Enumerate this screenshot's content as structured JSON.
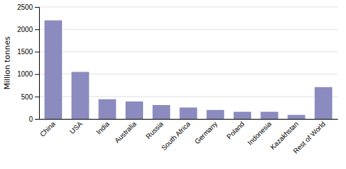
{
  "chart_data": {
    "type": "bar",
    "ylabel": "Million tonnes",
    "categories": [
      "China",
      "USA",
      "India",
      "Australia",
      "Russia",
      "South Africa",
      "Germany",
      "Poland",
      "Indonesia",
      "Kazakhstan",
      "Rest of World"
    ],
    "values": [
      2200,
      1050,
      440,
      390,
      310,
      255,
      200,
      160,
      160,
      90,
      710
    ],
    "color": "#8b8bbf",
    "ylim": [
      0,
      2500
    ],
    "yticks": [
      0,
      500,
      1000,
      1500,
      2000,
      2500
    ],
    "grid": true
  }
}
